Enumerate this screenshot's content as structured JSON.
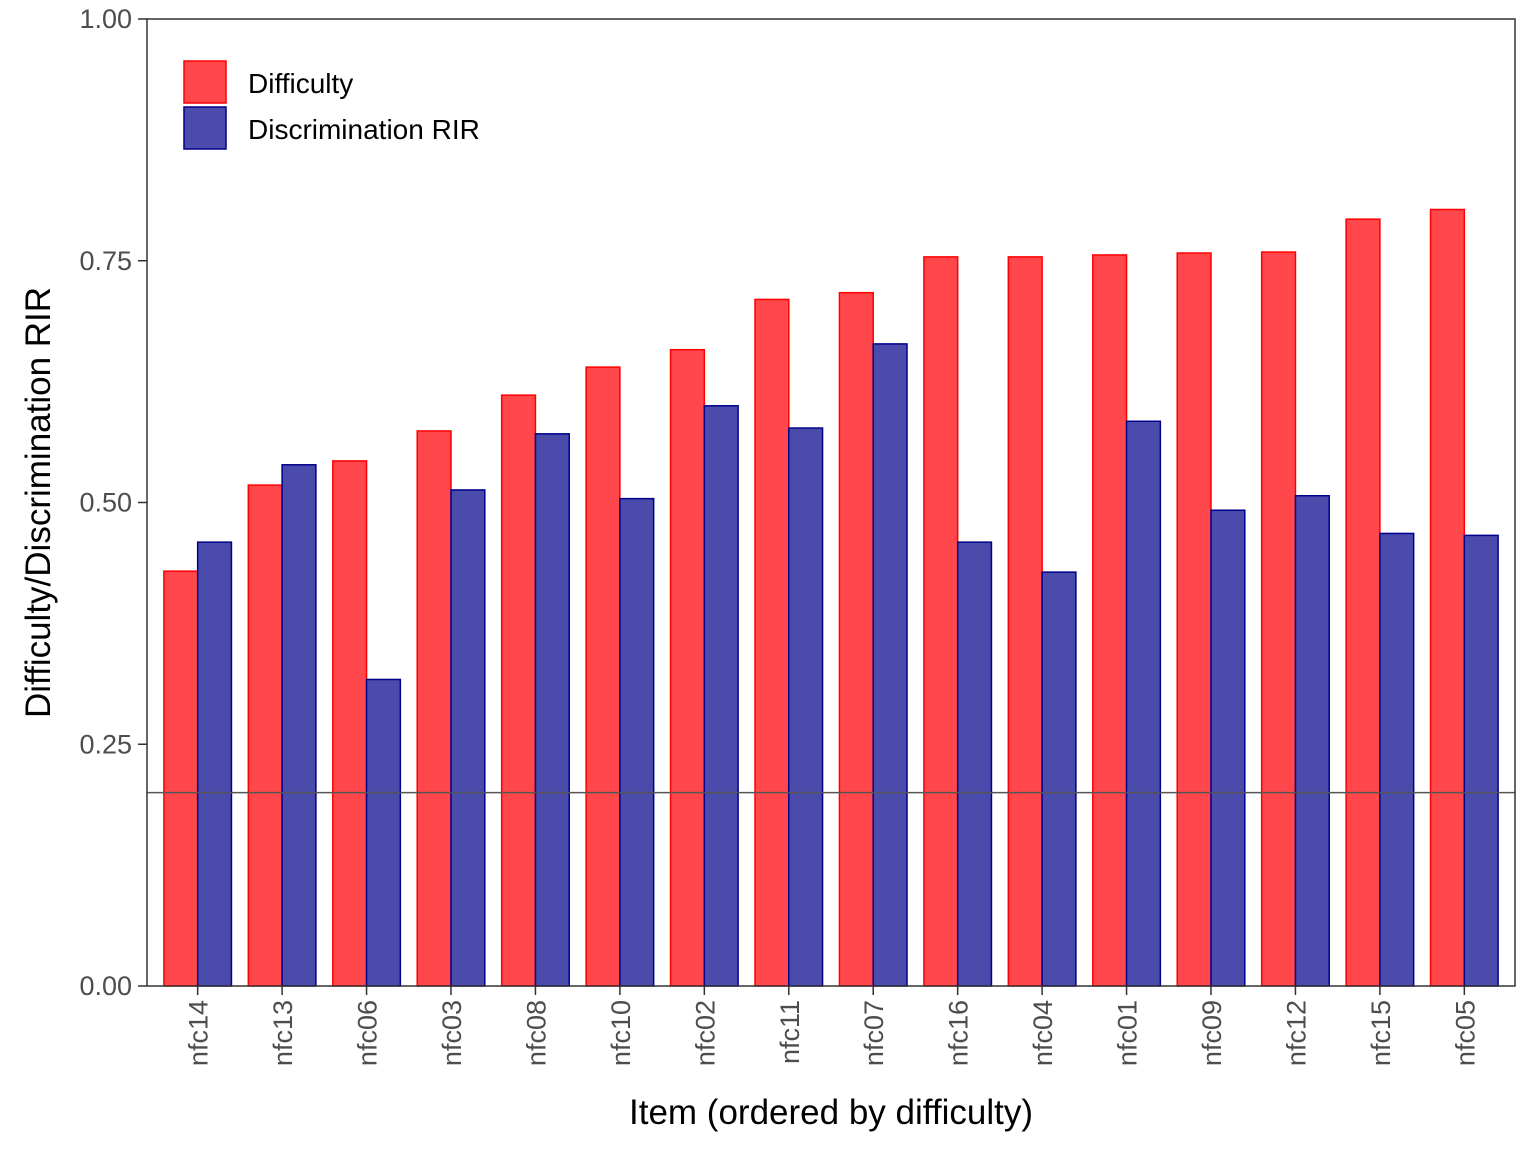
{
  "chart_data": {
    "type": "bar",
    "xlabel": "Item (ordered by difficulty)",
    "ylabel": "Difficulty/Discrimination RIR",
    "ylim": [
      0,
      1
    ],
    "yticks": [
      "0.00",
      "0.25",
      "0.50",
      "0.75",
      "1.00"
    ],
    "grid": false,
    "legend_position": "top-left",
    "reference_line": 0.2,
    "categories": [
      "nfc14",
      "nfc13",
      "nfc06",
      "nfc03",
      "nfc08",
      "nfc10",
      "nfc02",
      "nfc11",
      "nfc07",
      "nfc16",
      "nfc04",
      "nfc01",
      "nfc09",
      "nfc12",
      "nfc15",
      "nfc05"
    ],
    "series": [
      {
        "name": "Difficulty",
        "color": "#ff474c",
        "border": "#ff0000",
        "values": [
          0.429,
          0.518,
          0.543,
          0.574,
          0.611,
          0.64,
          0.658,
          0.71,
          0.717,
          0.754,
          0.754,
          0.756,
          0.758,
          0.759,
          0.793,
          0.803
        ]
      },
      {
        "name": "Discrimination RIR",
        "color": "#4b4bab",
        "border": "#00008b",
        "values": [
          0.459,
          0.539,
          0.317,
          0.513,
          0.571,
          0.504,
          0.6,
          0.577,
          0.664,
          0.459,
          0.428,
          0.584,
          0.492,
          0.507,
          0.468,
          0.466
        ]
      }
    ]
  }
}
